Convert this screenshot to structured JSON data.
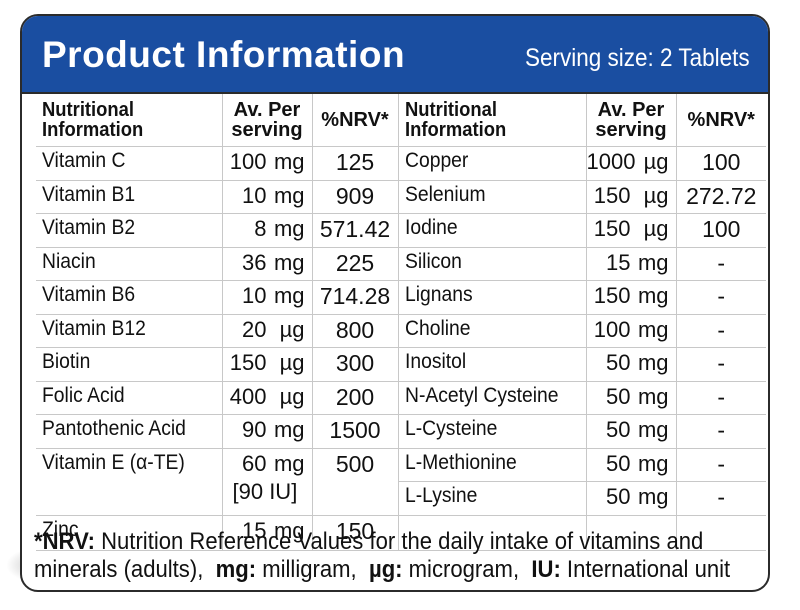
{
  "header": {
    "title": "Product Information",
    "serving": "Serving size: 2 Tablets"
  },
  "columns": {
    "left": {
      "name": "Nutritional Information",
      "amount": "Av. Per serving",
      "nrv": "%NRV*"
    },
    "right": {
      "name": "Nutritional Information",
      "amount": "Av. Per serving",
      "nrv": "%NRV*"
    }
  },
  "left_rows": [
    {
      "name": "Vitamin C",
      "value": "100",
      "unit": "mg",
      "nrv": "125"
    },
    {
      "name": "Vitamin B1",
      "value": "10",
      "unit": "mg",
      "nrv": "909"
    },
    {
      "name": "Vitamin B2",
      "value": "8",
      "unit": "mg",
      "nrv": "571.42"
    },
    {
      "name": "Niacin",
      "value": "36",
      "unit": "mg",
      "nrv": "225"
    },
    {
      "name": "Vitamin B6",
      "value": "10",
      "unit": "mg",
      "nrv": "714.28"
    },
    {
      "name": "Vitamin B12",
      "value": "20",
      "unit": "µg",
      "nrv": "800"
    },
    {
      "name": "Biotin",
      "value": "150",
      "unit": "µg",
      "nrv": "300"
    },
    {
      "name": "Folic Acid",
      "value": "400",
      "unit": "µg",
      "nrv": "200"
    },
    {
      "name": "Pantothenic Acid",
      "value": "90",
      "unit": "mg",
      "nrv": "1500"
    },
    {
      "name": "Vitamin E (α-TE)",
      "value": "60",
      "unit": "mg",
      "extra": "[90 IU]",
      "nrv": "500"
    },
    {
      "name": "Zinc",
      "value": "15",
      "unit": "mg",
      "nrv": "150"
    }
  ],
  "right_rows": [
    {
      "name": "Copper",
      "value": "1000",
      "unit": "µg",
      "nrv": "100"
    },
    {
      "name": "Selenium",
      "value": "150",
      "unit": "µg",
      "nrv": "272.72"
    },
    {
      "name": "Iodine",
      "value": "150",
      "unit": "µg",
      "nrv": "100"
    },
    {
      "name": "Silicon",
      "value": "15",
      "unit": "mg",
      "nrv": "-"
    },
    {
      "name": "Lignans",
      "value": "150",
      "unit": "mg",
      "nrv": "-"
    },
    {
      "name": "Choline",
      "value": "100",
      "unit": "mg",
      "nrv": "-"
    },
    {
      "name": "Inositol",
      "value": "50",
      "unit": "mg",
      "nrv": "-"
    },
    {
      "name": "N-Acetyl Cysteine",
      "value": "50",
      "unit": "mg",
      "nrv": "-"
    },
    {
      "name": "L-Cysteine",
      "value": "50",
      "unit": "mg",
      "nrv": "-"
    },
    {
      "name": "L-Methionine",
      "value": "50",
      "unit": "mg",
      "nrv": "-"
    },
    {
      "name": "L-Lysine",
      "value": "50",
      "unit": "mg",
      "nrv": "-"
    }
  ],
  "footnote": {
    "nrv_term": "*NRV:",
    "nrv_text": " Nutrition Reference Values for the daily intake of vitamins and",
    "line2_start": "minerals (adults),",
    "mg_term": "mg:",
    "mg_text": " milligram,",
    "ug_term": "µg:",
    "ug_text": " microgram,",
    "iu_term": "IU:",
    "iu_text": " International unit"
  },
  "colors": {
    "header_bg": "#1a4ea1",
    "header_text": "#ffffff",
    "border": "#2b2b2b",
    "grid": "#c8c8c8"
  }
}
